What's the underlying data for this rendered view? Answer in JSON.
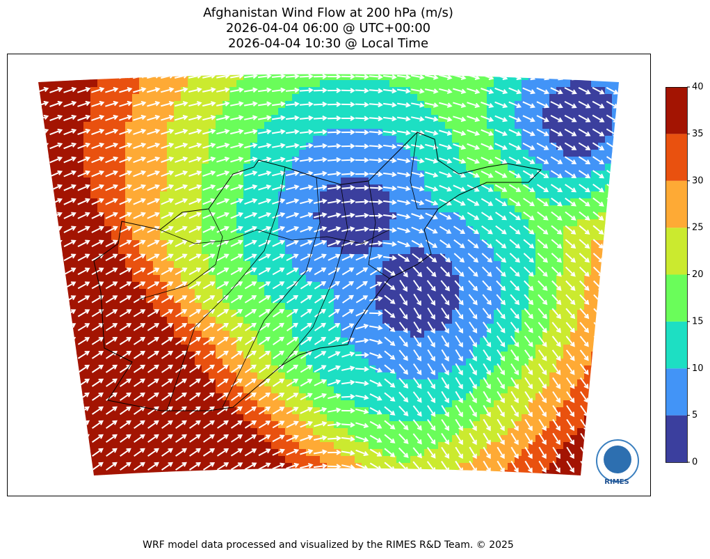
{
  "title": [
    "Afghanistan Wind Flow at 200 hPa (m/s)",
    "2026-04-04 06:00 @ UTC+00:00",
    "2026-04-04 10:30 @ Local Time"
  ],
  "colorbar": {
    "lim": [
      0,
      40
    ],
    "ticks": [
      0,
      5,
      10,
      15,
      20,
      25,
      30,
      35,
      40
    ],
    "colors": [
      "#3b3f9e",
      "#4294f7",
      "#1ddfc3",
      "#6afd5a",
      "#cbea2f",
      "#feaa35",
      "#e9510f",
      "#a31402"
    ]
  },
  "logo": "RIMES",
  "footer": "WRF model data processed and visualized by the RIMES R&D Team. © 2025"
}
